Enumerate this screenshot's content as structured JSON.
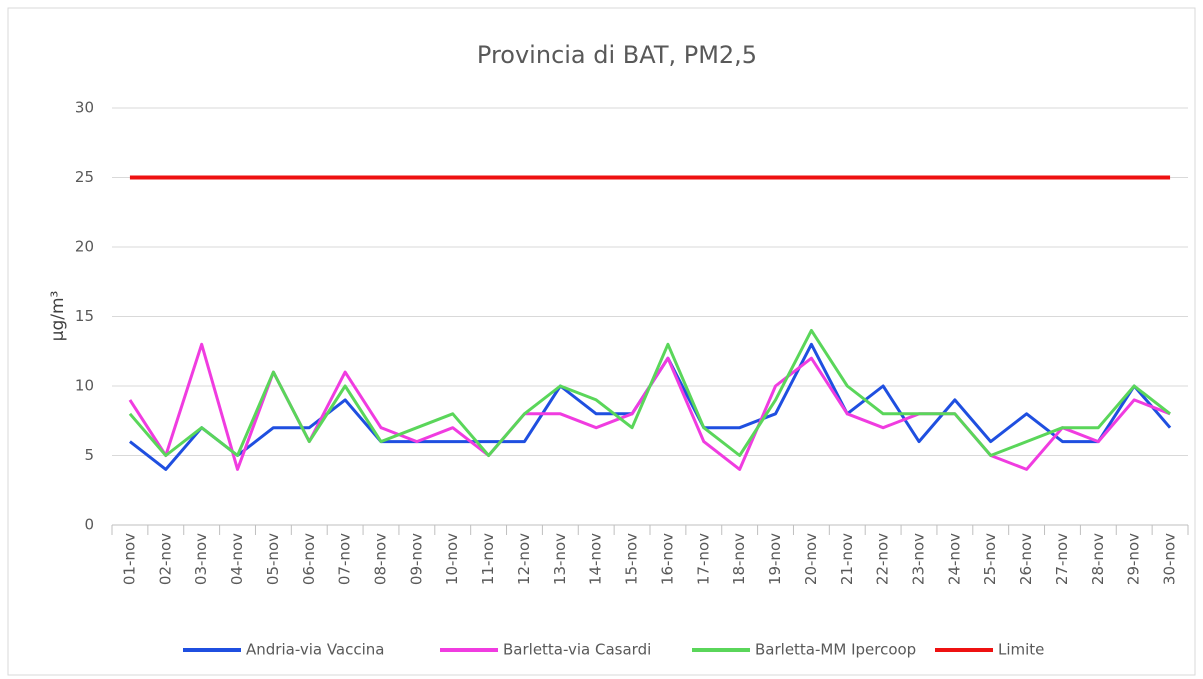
{
  "chart_data": {
    "type": "line",
    "title": "Provincia di BAT, PM2,5",
    "y_label": "µg/m³",
    "categories": [
      "01-nov",
      "02-nov",
      "03-nov",
      "04-nov",
      "05-nov",
      "06-nov",
      "07-nov",
      "08-nov",
      "09-nov",
      "10-nov",
      "11-nov",
      "12-nov",
      "13-nov",
      "14-nov",
      "15-nov",
      "16-nov",
      "17-nov",
      "18-nov",
      "19-nov",
      "20-nov",
      "21-nov",
      "22-nov",
      "23-nov",
      "24-nov",
      "25-nov",
      "26-nov",
      "27-nov",
      "28-nov",
      "29-nov",
      "30-nov"
    ],
    "series": [
      {
        "name": "Andria-via Vaccina",
        "color": "#1f4fe0",
        "values": [
          6,
          4,
          7,
          5,
          7,
          7,
          9,
          6,
          6,
          6,
          6,
          6,
          10,
          8,
          8,
          12,
          7,
          7,
          8,
          13,
          8,
          10,
          6,
          9,
          6,
          8,
          6,
          6,
          10,
          7
        ]
      },
      {
        "name": "Barletta-via Casardi",
        "color": "#f03ce0",
        "values": [
          9,
          5,
          13,
          4,
          11,
          6,
          11,
          7,
          6,
          7,
          5,
          8,
          8,
          7,
          8,
          12,
          6,
          4,
          10,
          12,
          8,
          7,
          8,
          8,
          5,
          4,
          7,
          6,
          9,
          8
        ]
      },
      {
        "name": "Barletta-MM Ipercoop",
        "color": "#5ad65a",
        "values": [
          8,
          5,
          7,
          5,
          11,
          6,
          10,
          6,
          7,
          8,
          5,
          8,
          10,
          9,
          7,
          13,
          7,
          5,
          9,
          14,
          10,
          8,
          8,
          8,
          5,
          6,
          7,
          7,
          10,
          8
        ]
      },
      {
        "name": "Limite",
        "color": "#ee1111",
        "values": [
          25,
          25,
          25,
          25,
          25,
          25,
          25,
          25,
          25,
          25,
          25,
          25,
          25,
          25,
          25,
          25,
          25,
          25,
          25,
          25,
          25,
          25,
          25,
          25,
          25,
          25,
          25,
          25,
          25,
          25
        ]
      }
    ],
    "ylim": [
      0,
      30
    ],
    "yticks": [
      0,
      5,
      10,
      15,
      20,
      25,
      30
    ],
    "grid": true,
    "legend": "bottom"
  }
}
